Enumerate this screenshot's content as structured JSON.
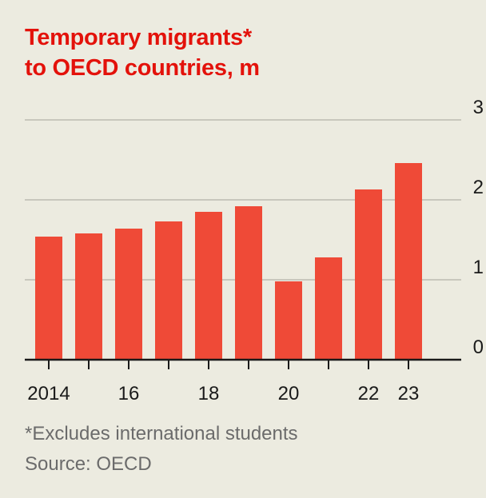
{
  "title_lines": [
    "Temporary migrants*",
    "to OECD countries, m"
  ],
  "footnote": "*Excludes international students",
  "source": "Source: OECD",
  "colors": {
    "background": "#ecebe0",
    "bar": "#ef4a37",
    "title": "#e3120b",
    "grid": "#c8c7bd",
    "axis": "#1a1a1a",
    "text": "#1a1a1a",
    "muted": "#6b6b6b"
  },
  "chart_data": {
    "type": "bar",
    "title": "Temporary migrants* to OECD countries, m",
    "xlabel": "",
    "ylabel": "",
    "categories": [
      "2014",
      "2015",
      "2016",
      "2017",
      "2018",
      "2019",
      "2020",
      "2021",
      "2022",
      "2023"
    ],
    "x_tick_labels": [
      "2014",
      "",
      "16",
      "",
      "18",
      "",
      "20",
      "",
      "22",
      "23"
    ],
    "values": [
      1.54,
      1.58,
      1.64,
      1.73,
      1.85,
      1.92,
      0.98,
      1.28,
      2.13,
      2.46
    ],
    "ylim": [
      0,
      3
    ],
    "y_ticks": [
      0,
      1,
      2,
      3
    ],
    "y_tick_labels": [
      "0",
      "1",
      "2",
      "3"
    ],
    "y_axis_side": "right",
    "grid": true
  }
}
